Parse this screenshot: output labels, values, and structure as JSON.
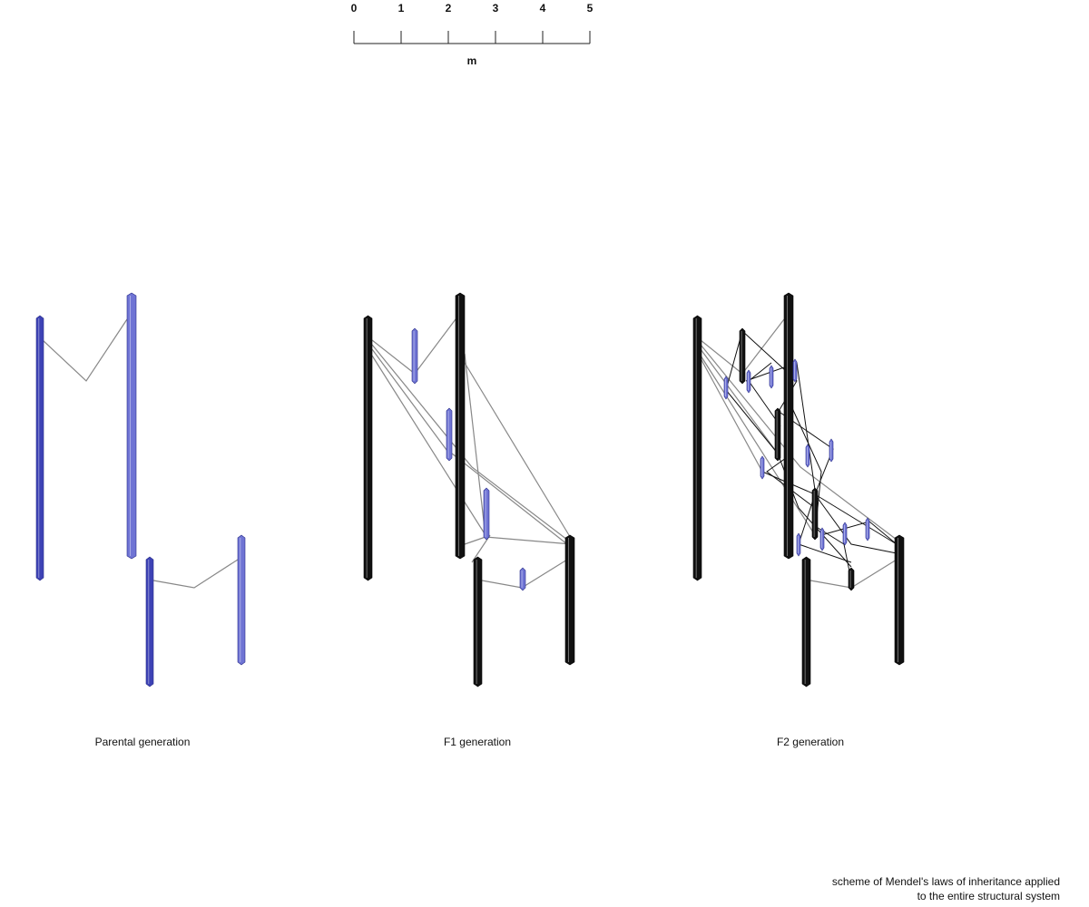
{
  "scale": {
    "ticks": [
      0,
      1,
      2,
      3,
      4,
      5
    ],
    "unit": "m"
  },
  "panels": [
    {
      "label": "Parental generation"
    },
    {
      "label": "F1 generation"
    },
    {
      "label": "F2 generation"
    }
  ],
  "caption": {
    "lines": [
      "scheme of Mendel's laws of inheritance applied",
      "to the entire structural system"
    ]
  }
}
